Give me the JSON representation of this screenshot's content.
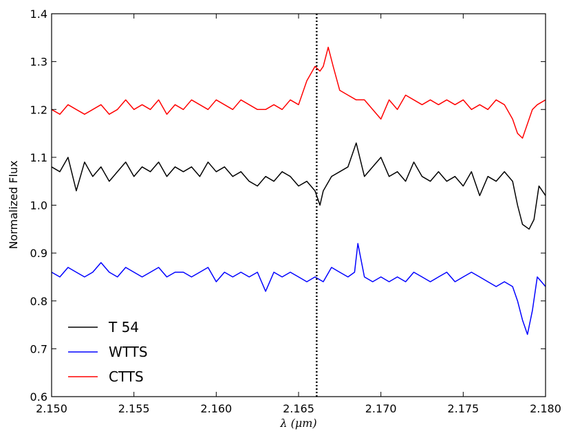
{
  "chart_data": {
    "type": "line",
    "title": "",
    "xlabel": "λ (μm)",
    "ylabel": "Normalized Flux",
    "xlim": [
      2.15,
      2.18
    ],
    "ylim": [
      0.6,
      1.4
    ],
    "x_ticks": [
      "2.150",
      "2.155",
      "2.160",
      "2.165",
      "2.170",
      "2.175",
      "2.180"
    ],
    "y_ticks": [
      "0.6",
      "0.7",
      "0.8",
      "0.9",
      "1.0",
      "1.1",
      "1.2",
      "1.3",
      "1.4"
    ],
    "grid": false,
    "legend": "lower-left",
    "reference_line": {
      "x": 2.1661,
      "style": "dotted",
      "color": "#000000"
    },
    "series": [
      {
        "name": "T 54",
        "color": "#000000",
        "x": [
          2.15,
          2.1505,
          2.151,
          2.1515,
          2.152,
          2.1525,
          2.153,
          2.1535,
          2.154,
          2.1545,
          2.155,
          2.1555,
          2.156,
          2.1565,
          2.157,
          2.1575,
          2.158,
          2.1585,
          2.159,
          2.1595,
          2.16,
          2.1605,
          2.161,
          2.1615,
          2.162,
          2.1625,
          2.163,
          2.1635,
          2.164,
          2.1645,
          2.165,
          2.1655,
          2.166,
          2.1663,
          2.1665,
          2.167,
          2.1675,
          2.168,
          2.1685,
          2.169,
          2.1695,
          2.17,
          2.1705,
          2.171,
          2.1715,
          2.172,
          2.1725,
          2.173,
          2.1735,
          2.174,
          2.1745,
          2.175,
          2.1755,
          2.176,
          2.1765,
          2.177,
          2.1775,
          2.178,
          2.1783,
          2.1786,
          2.179,
          2.1793,
          2.1796,
          2.18
        ],
        "y": [
          1.08,
          1.07,
          1.1,
          1.03,
          1.09,
          1.06,
          1.08,
          1.05,
          1.07,
          1.09,
          1.06,
          1.08,
          1.07,
          1.09,
          1.06,
          1.08,
          1.07,
          1.08,
          1.06,
          1.09,
          1.07,
          1.08,
          1.06,
          1.07,
          1.05,
          1.04,
          1.06,
          1.05,
          1.07,
          1.06,
          1.04,
          1.05,
          1.03,
          1.0,
          1.03,
          1.06,
          1.07,
          1.08,
          1.13,
          1.06,
          1.08,
          1.1,
          1.06,
          1.07,
          1.05,
          1.09,
          1.06,
          1.05,
          1.07,
          1.05,
          1.06,
          1.04,
          1.07,
          1.02,
          1.06,
          1.05,
          1.07,
          1.05,
          1.0,
          0.96,
          0.95,
          0.97,
          1.04,
          1.02
        ]
      },
      {
        "name": "WTTS",
        "color": "#0000ff",
        "x": [
          2.15,
          2.1505,
          2.151,
          2.1515,
          2.152,
          2.1525,
          2.153,
          2.1535,
          2.154,
          2.1545,
          2.155,
          2.1555,
          2.156,
          2.1565,
          2.157,
          2.1575,
          2.158,
          2.1585,
          2.159,
          2.1595,
          2.16,
          2.1605,
          2.161,
          2.1615,
          2.162,
          2.1625,
          2.163,
          2.1635,
          2.164,
          2.1645,
          2.165,
          2.1655,
          2.166,
          2.1665,
          2.167,
          2.1675,
          2.168,
          2.1684,
          2.1686,
          2.169,
          2.1695,
          2.17,
          2.1705,
          2.171,
          2.1715,
          2.172,
          2.1725,
          2.173,
          2.1735,
          2.174,
          2.1745,
          2.175,
          2.1755,
          2.176,
          2.1765,
          2.177,
          2.1775,
          2.178,
          2.1783,
          2.1786,
          2.1789,
          2.1792,
          2.1795,
          2.18
        ],
        "y": [
          0.86,
          0.85,
          0.87,
          0.86,
          0.85,
          0.86,
          0.88,
          0.86,
          0.85,
          0.87,
          0.86,
          0.85,
          0.86,
          0.87,
          0.85,
          0.86,
          0.86,
          0.85,
          0.86,
          0.87,
          0.84,
          0.86,
          0.85,
          0.86,
          0.85,
          0.86,
          0.82,
          0.86,
          0.85,
          0.86,
          0.85,
          0.84,
          0.85,
          0.84,
          0.87,
          0.86,
          0.85,
          0.86,
          0.92,
          0.85,
          0.84,
          0.85,
          0.84,
          0.85,
          0.84,
          0.86,
          0.85,
          0.84,
          0.85,
          0.86,
          0.84,
          0.85,
          0.86,
          0.85,
          0.84,
          0.83,
          0.84,
          0.83,
          0.8,
          0.76,
          0.73,
          0.78,
          0.85,
          0.83
        ]
      },
      {
        "name": "CTTS",
        "color": "#ff0000",
        "x": [
          2.15,
          2.1505,
          2.151,
          2.1515,
          2.152,
          2.1525,
          2.153,
          2.1535,
          2.154,
          2.1545,
          2.155,
          2.1555,
          2.156,
          2.1565,
          2.157,
          2.1575,
          2.158,
          2.1585,
          2.159,
          2.1595,
          2.16,
          2.1605,
          2.161,
          2.1615,
          2.162,
          2.1625,
          2.163,
          2.1635,
          2.164,
          2.1645,
          2.165,
          2.1655,
          2.166,
          2.1663,
          2.1665,
          2.1668,
          2.1671,
          2.1675,
          2.168,
          2.1685,
          2.169,
          2.1695,
          2.17,
          2.1705,
          2.171,
          2.1715,
          2.172,
          2.1725,
          2.173,
          2.1735,
          2.174,
          2.1745,
          2.175,
          2.1755,
          2.176,
          2.1765,
          2.177,
          2.1775,
          2.178,
          2.1783,
          2.1786,
          2.1789,
          2.1792,
          2.1795,
          2.18
        ],
        "y": [
          1.2,
          1.19,
          1.21,
          1.2,
          1.19,
          1.2,
          1.21,
          1.19,
          1.2,
          1.22,
          1.2,
          1.21,
          1.2,
          1.22,
          1.19,
          1.21,
          1.2,
          1.22,
          1.21,
          1.2,
          1.22,
          1.21,
          1.2,
          1.22,
          1.21,
          1.2,
          1.2,
          1.21,
          1.2,
          1.22,
          1.21,
          1.26,
          1.29,
          1.28,
          1.29,
          1.33,
          1.29,
          1.24,
          1.23,
          1.22,
          1.22,
          1.2,
          1.18,
          1.22,
          1.2,
          1.23,
          1.22,
          1.21,
          1.22,
          1.21,
          1.22,
          1.21,
          1.22,
          1.2,
          1.21,
          1.2,
          1.22,
          1.21,
          1.18,
          1.15,
          1.14,
          1.17,
          1.2,
          1.21,
          1.22
        ]
      }
    ]
  }
}
